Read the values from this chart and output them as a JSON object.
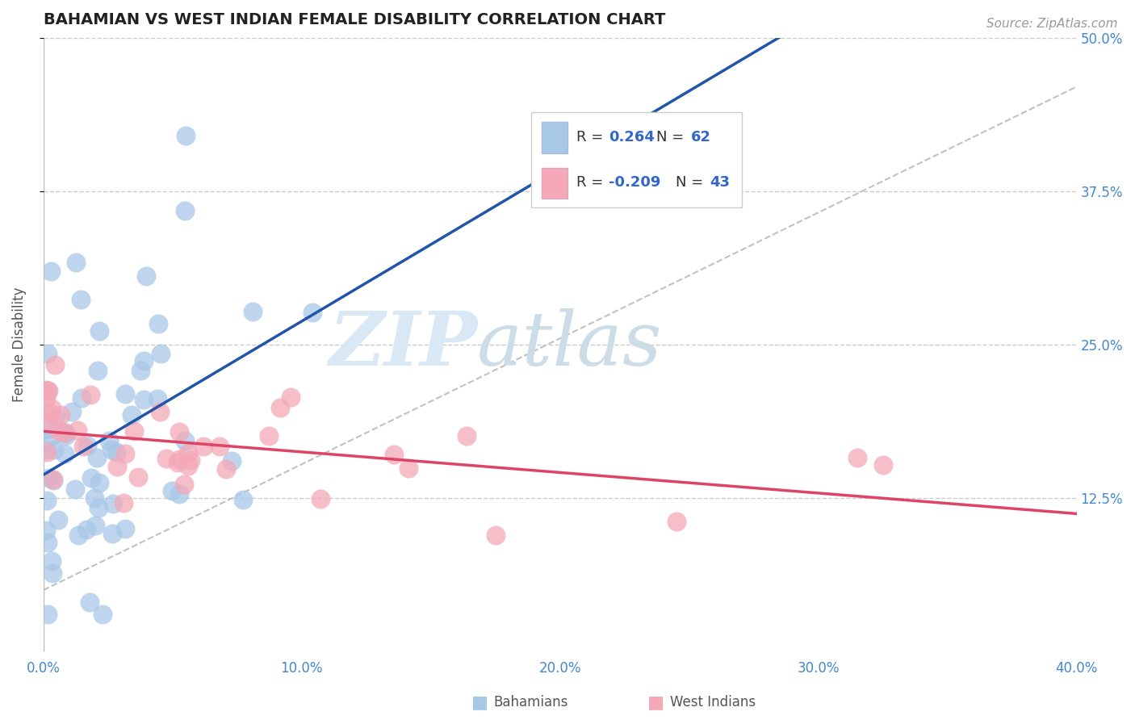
{
  "title": "BAHAMIAN VS WEST INDIAN FEMALE DISABILITY CORRELATION CHART",
  "source_text": "Source: ZipAtlas.com",
  "ylabel": "Female Disability",
  "xlim": [
    0.0,
    0.4
  ],
  "ylim": [
    0.0,
    0.5
  ],
  "xtick_labels": [
    "0.0%",
    "",
    "10.0%",
    "",
    "20.0%",
    "",
    "30.0%",
    "",
    "40.0%"
  ],
  "xtick_vals": [
    0.0,
    0.05,
    0.1,
    0.15,
    0.2,
    0.25,
    0.3,
    0.35,
    0.4
  ],
  "ytick_labels": [
    "12.5%",
    "25.0%",
    "37.5%",
    "50.0%"
  ],
  "ytick_vals": [
    0.125,
    0.25,
    0.375,
    0.5
  ],
  "bahamian_color": "#a8c8e8",
  "west_indian_color": "#f4a8b8",
  "bahamian_edge_color": "#90b8d8",
  "west_indian_edge_color": "#e898a8",
  "bahamian_line_color": "#2255aa",
  "west_indian_line_color": "#dd4466",
  "trend_line_color": "#bbbbbb",
  "R_bahamian": 0.264,
  "N_bahamian": 62,
  "R_west_indian": -0.209,
  "N_west_indian": 43,
  "legend_color": "#3366cc",
  "watermark_color": "#dde8f4",
  "legend_bah_label": "R =  0.264   N = 62",
  "legend_wi_label": "R = -0.209   N = 43"
}
